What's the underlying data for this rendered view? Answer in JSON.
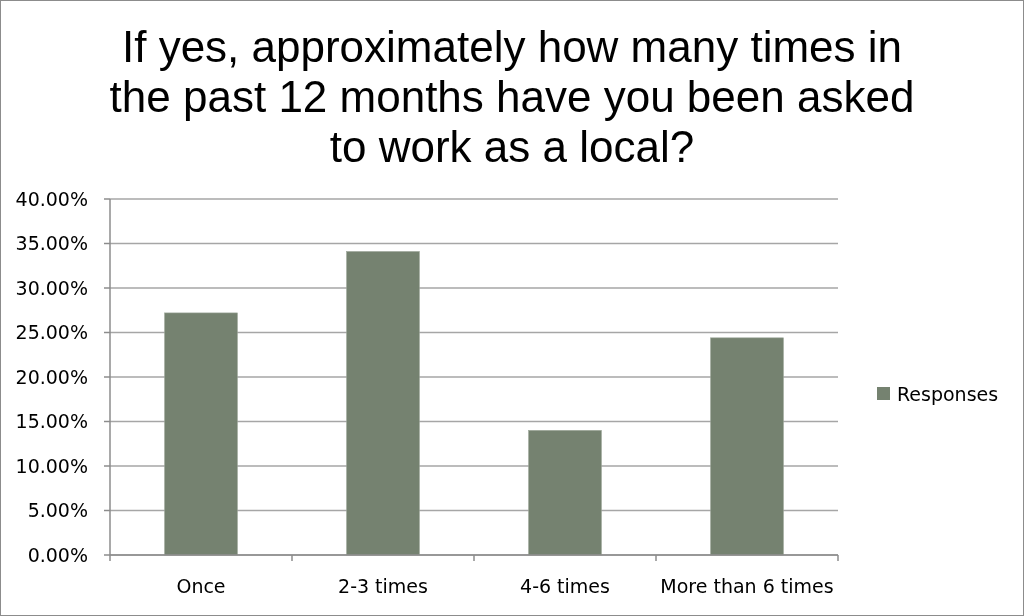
{
  "chart_data": {
    "type": "bar",
    "title": "If yes, approximately how many times in the past 12 months have you been asked to work as a local?",
    "categories": [
      "Once",
      "2-3 times",
      "4-6 times",
      "More than 6 times"
    ],
    "series": [
      {
        "name": "Responses",
        "color": "#758270",
        "values": [
          27.2,
          34.1,
          14.0,
          24.4
        ]
      }
    ],
    "ylim": [
      0,
      40
    ],
    "yticks": [
      {
        "value": 0,
        "label": "0.00%"
      },
      {
        "value": 5,
        "label": "5.00%"
      },
      {
        "value": 10,
        "label": "10.00%"
      },
      {
        "value": 15,
        "label": "15.00%"
      },
      {
        "value": 20,
        "label": "20.00%"
      },
      {
        "value": 25,
        "label": "25.00%"
      },
      {
        "value": 30,
        "label": "30.00%"
      },
      {
        "value": 35,
        "label": "35.00%"
      },
      {
        "value": 40,
        "label": "40.00%"
      }
    ],
    "grid": "y",
    "legend": "right"
  }
}
